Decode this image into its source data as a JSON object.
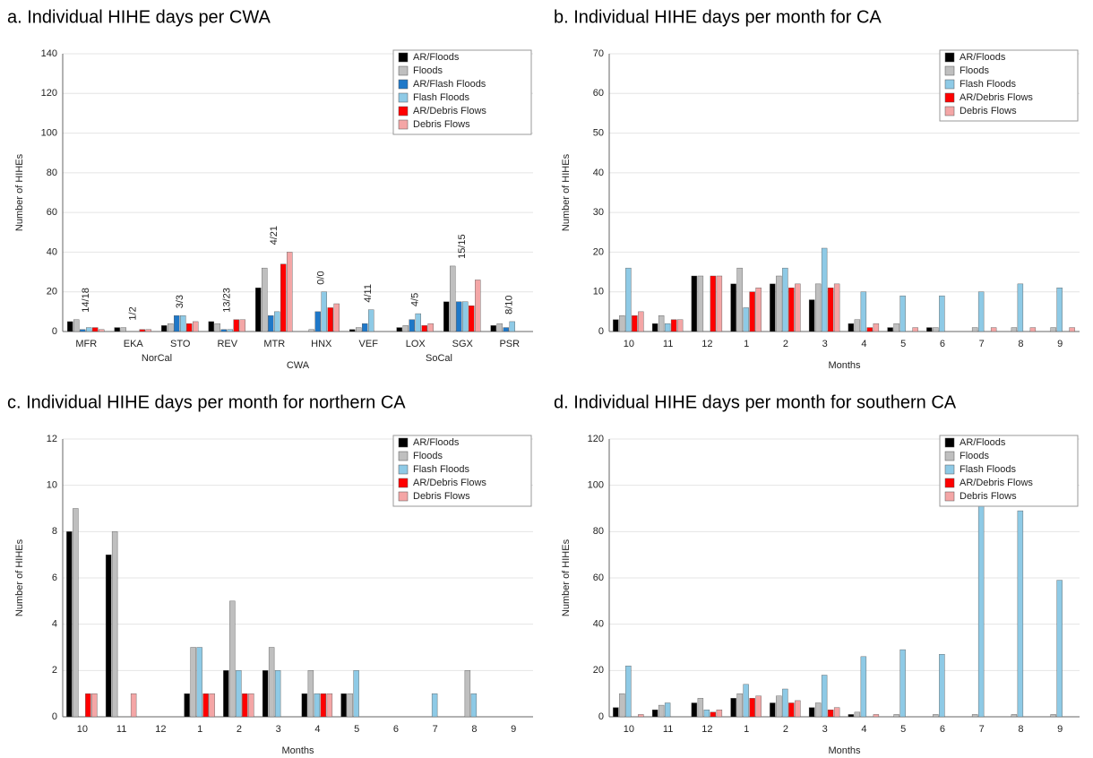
{
  "chart_data": [
    {
      "type": "bar",
      "title": "a. Individual HIHE days per CWA",
      "x_label": "CWA",
      "y_label": "Number of HIHEs",
      "categories": [
        "MFR",
        "EKA",
        "STO",
        "REV",
        "MTR",
        "HNX",
        "VEF",
        "LOX",
        "SGX",
        "PSR"
      ],
      "groups": [
        {
          "name": "NorCal",
          "span": [
            0,
            3
          ]
        },
        {
          "name": "SoCal",
          "span": [
            6,
            9
          ]
        }
      ],
      "annotations": [
        "14/18",
        "1/2",
        "3/3",
        "13/23",
        "4/21",
        "0/0",
        "4/11",
        "4/5",
        "15/15",
        "8/10"
      ],
      "ylim": [
        0,
        140
      ],
      "yticks": [
        0,
        20,
        40,
        60,
        80,
        100,
        120,
        140
      ],
      "series": [
        {
          "name": "AR/Floods",
          "color": "#000000",
          "values": [
            5,
            2,
            3,
            5,
            22,
            0,
            1,
            2,
            15,
            3
          ]
        },
        {
          "name": "Floods",
          "color": "#bfbfbf",
          "values": [
            6,
            2,
            4,
            4,
            32,
            1,
            2,
            3,
            33,
            4
          ]
        },
        {
          "name": "AR/Flash Floods",
          "color": "#1f78c8",
          "values": [
            1,
            0,
            8,
            1,
            8,
            10,
            4,
            6,
            15,
            2
          ]
        },
        {
          "name": "Flash Floods",
          "color": "#8ecae6",
          "values": [
            2,
            0,
            8,
            1,
            10,
            20,
            11,
            9,
            15,
            5
          ]
        },
        {
          "name": "AR/Debris Flows",
          "color": "#ff0000",
          "values": [
            2,
            1,
            4,
            6,
            34,
            12,
            0,
            3,
            13,
            0
          ]
        },
        {
          "name": "Debris Flows",
          "color": "#f4a6a6",
          "values": [
            1,
            1,
            5,
            6,
            40,
            14,
            0,
            4,
            26,
            0
          ]
        }
      ]
    },
    {
      "type": "bar",
      "title": "b. Individual HIHE days per month for CA",
      "x_label": "Months",
      "y_label": "Number of HIHEs",
      "categories": [
        "10",
        "11",
        "12",
        "1",
        "2",
        "3",
        "4",
        "5",
        "6",
        "7",
        "8",
        "9"
      ],
      "ylim": [
        0,
        70
      ],
      "yticks": [
        0,
        10,
        20,
        30,
        40,
        50,
        60,
        70
      ],
      "series": [
        {
          "name": "AR/Floods",
          "color": "#000000",
          "values": [
            3,
            2,
            14,
            12,
            12,
            8,
            2,
            1,
            1,
            0,
            0,
            0
          ]
        },
        {
          "name": "Floods",
          "color": "#bfbfbf",
          "values": [
            4,
            4,
            14,
            16,
            14,
            12,
            3,
            2,
            1,
            1,
            1,
            1
          ]
        },
        {
          "name": "Flash Floods",
          "color": "#8ecae6",
          "values": [
            16,
            2,
            0,
            6,
            16,
            21,
            10,
            9,
            9,
            10,
            12,
            11
          ]
        },
        {
          "name": "AR/Debris Flows",
          "color": "#ff0000",
          "values": [
            4,
            3,
            14,
            10,
            11,
            11,
            1,
            0,
            0,
            0,
            0,
            0
          ]
        },
        {
          "name": "Debris Flows",
          "color": "#f4a6a6",
          "values": [
            5,
            3,
            14,
            11,
            12,
            12,
            2,
            1,
            0,
            1,
            1,
            1
          ]
        }
      ]
    },
    {
      "type": "bar",
      "title": "c. Individual HIHE days per month for northern CA",
      "x_label": "Months",
      "y_label": "Number of HIHEs",
      "categories": [
        "10",
        "11",
        "12",
        "1",
        "2",
        "3",
        "4",
        "5",
        "6",
        "7",
        "8",
        "9"
      ],
      "ylim": [
        0,
        12
      ],
      "yticks": [
        0,
        2,
        4,
        6,
        8,
        10,
        12
      ],
      "series": [
        {
          "name": "AR/Floods",
          "color": "#000000",
          "values": [
            8,
            7,
            0,
            1,
            2,
            2,
            1,
            1,
            0,
            0,
            0,
            0
          ]
        },
        {
          "name": "Floods",
          "color": "#bfbfbf",
          "values": [
            9,
            8,
            0,
            3,
            5,
            3,
            2,
            1,
            0,
            0,
            2,
            0
          ]
        },
        {
          "name": "Flash Floods",
          "color": "#8ecae6",
          "values": [
            0,
            0,
            0,
            3,
            2,
            2,
            1,
            2,
            0,
            1,
            1,
            0
          ]
        },
        {
          "name": "AR/Debris Flows",
          "color": "#ff0000",
          "values": [
            1,
            0,
            0,
            1,
            1,
            0,
            1,
            0,
            0,
            0,
            0,
            0
          ]
        },
        {
          "name": "Debris Flows",
          "color": "#f4a6a6",
          "values": [
            1,
            1,
            0,
            1,
            1,
            0,
            1,
            0,
            0,
            0,
            0,
            0
          ]
        }
      ]
    },
    {
      "type": "bar",
      "title": "d. Individual HIHE days per month for southern CA",
      "x_label": "Months",
      "y_label": "Number of HIHEs",
      "categories": [
        "10",
        "11",
        "12",
        "1",
        "2",
        "3",
        "4",
        "5",
        "6",
        "7",
        "8",
        "9"
      ],
      "ylim": [
        0,
        120
      ],
      "yticks": [
        0,
        20,
        40,
        60,
        80,
        100,
        120
      ],
      "series": [
        {
          "name": "AR/Floods",
          "color": "#000000",
          "values": [
            4,
            3,
            6,
            8,
            6,
            4,
            1,
            0,
            0,
            0,
            0,
            0
          ]
        },
        {
          "name": "Floods",
          "color": "#bfbfbf",
          "values": [
            10,
            5,
            8,
            10,
            9,
            6,
            2,
            1,
            1,
            1,
            1,
            1
          ]
        },
        {
          "name": "Flash Floods",
          "color": "#8ecae6",
          "values": [
            22,
            6,
            3,
            14,
            12,
            18,
            26,
            29,
            27,
            97,
            89,
            59
          ]
        },
        {
          "name": "AR/Debris Flows",
          "color": "#ff0000",
          "values": [
            0,
            0,
            2,
            8,
            6,
            3,
            0,
            0,
            0,
            0,
            0,
            0
          ]
        },
        {
          "name": "Debris Flows",
          "color": "#f4a6a6",
          "values": [
            1,
            0,
            3,
            9,
            7,
            4,
            1,
            0,
            0,
            0,
            0,
            0
          ]
        }
      ]
    }
  ]
}
